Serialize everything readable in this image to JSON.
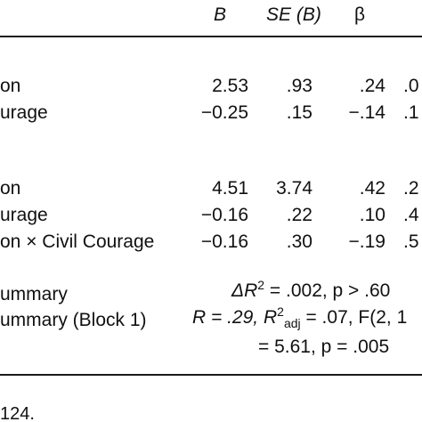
{
  "header": {
    "col_b": "B",
    "col_se_b": "SE (B)",
    "col_beta": "β"
  },
  "block1": {
    "rows": [
      {
        "label": "on",
        "b": "2.53",
        "se": ".93",
        "beta": ".24",
        "extra": ".0"
      },
      {
        "label": "urage",
        "b": "−0.25",
        "se": ".15",
        "beta": "−.14",
        "extra": ".1"
      }
    ]
  },
  "block2": {
    "rows": [
      {
        "label": "on",
        "b": "4.51",
        "se": "3.74",
        "beta": ".42",
        "extra": ".2"
      },
      {
        "label": "urage",
        "b": "−0.16",
        "se": ".22",
        "beta": ".10",
        "extra": ".4"
      },
      {
        "label": "on × Civil Courage",
        "b": "−0.16",
        "se": ".30",
        "beta": "−.19",
        "extra": ".5"
      }
    ]
  },
  "summary": {
    "label1": "ummary",
    "delta_r2_sym": "ΔR",
    "delta_r2_sup": "2",
    "delta_r2_rest": " = .002, p > .60",
    "label2": "ummary (Block 1)",
    "r_part": "R = .29, R",
    "r2adj_sup": "2",
    "r2adj_sub": "adj",
    "r_rest": " = .07, F(2, 1",
    "line3": "= 5.61, p = .005"
  },
  "footnote": {
    "text": "124."
  }
}
